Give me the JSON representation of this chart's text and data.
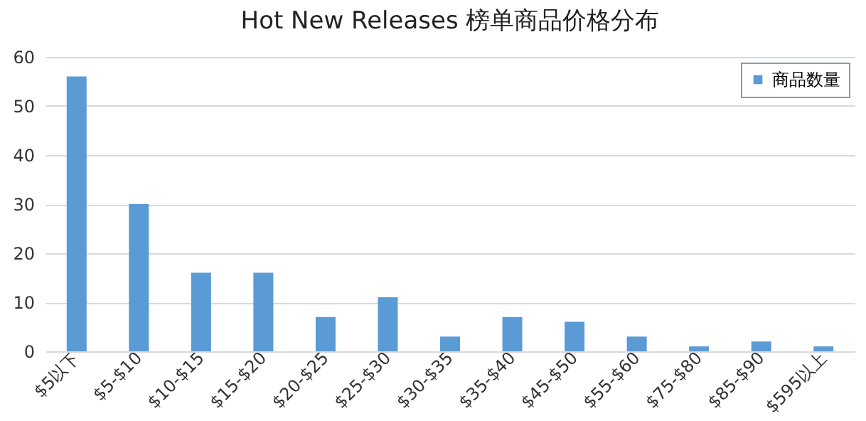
{
  "chart_data": {
    "type": "bar",
    "title": "Hot New Releases 榜单商品价格分布",
    "categories": [
      "$5以下",
      "$5-$10",
      "$10-$15",
      "$15-$20",
      "$20-$25",
      "$25-$30",
      "$30-$35",
      "$35-$40",
      "$45-$50",
      "$55-$60",
      "$75-$80",
      "$85-$90",
      "$595以上"
    ],
    "series": [
      {
        "name": "商品数量",
        "color": "#5b9bd5",
        "values": [
          56,
          30,
          16,
          16,
          7,
          11,
          3,
          7,
          6,
          3,
          1,
          2,
          1
        ]
      }
    ],
    "ylim": [
      0,
      60
    ],
    "yticks": [
      0,
      10,
      20,
      30,
      40,
      50,
      60
    ],
    "grid": "y",
    "legend": "top right"
  }
}
